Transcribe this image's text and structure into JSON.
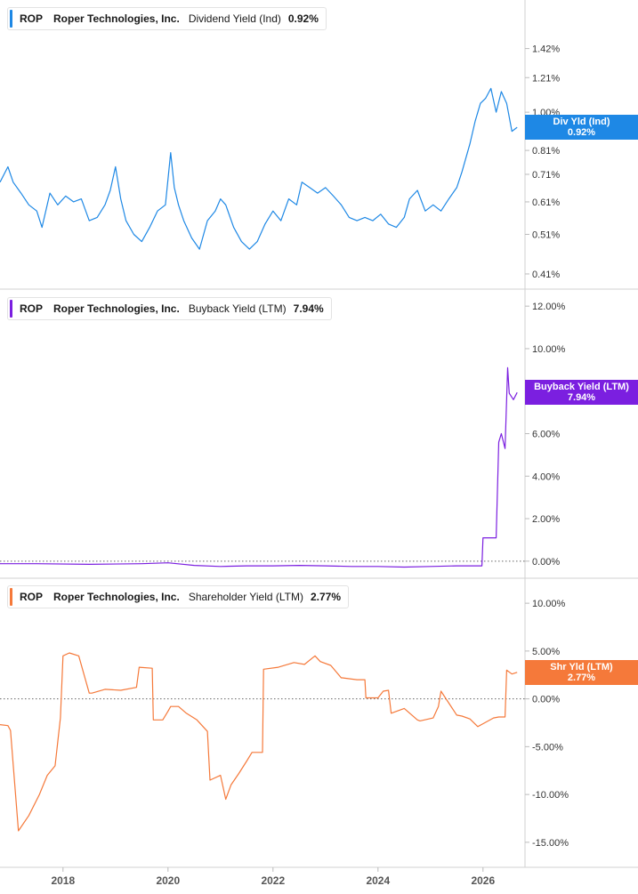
{
  "panels": [
    {
      "ticker": "ROP",
      "company": "Roper Technologies, Inc.",
      "metric": "Dividend Yield (Ind)",
      "value": "0.92%",
      "color": "#1e88e5",
      "tag": {
        "label": "Div Yld (Ind)",
        "value": "0.92%"
      }
    },
    {
      "ticker": "ROP",
      "company": "Roper Technologies, Inc.",
      "metric": "Buyback Yield (LTM)",
      "value": "7.94%",
      "color": "#7b1fe0",
      "tag": {
        "label": "Buyback Yield (LTM)",
        "value": "7.94%"
      }
    },
    {
      "ticker": "ROP",
      "company": "Roper Technologies, Inc.",
      "metric": "Shareholder Yield (LTM)",
      "value": "2.77%",
      "color": "#f5793a",
      "tag": {
        "label": "Shr Yld (LTM)",
        "value": "2.77%"
      }
    }
  ],
  "chart_data": [
    {
      "type": "line",
      "title": "ROP Roper Technologies, Inc. Dividend Yield (Ind) 0.92%",
      "scale": "log",
      "ylim": [
        0.4,
        1.75
      ],
      "yticks": [
        0.41,
        0.51,
        0.61,
        0.71,
        0.81,
        1.0,
        1.21,
        1.42
      ],
      "ytick_labels": [
        "0.41%",
        "0.51%",
        "0.61%",
        "0.71%",
        "0.81%",
        "1.00%",
        "1.21%",
        "1.42%"
      ],
      "grid": false,
      "series": [
        {
          "color": "#1e88e5",
          "x": [
            2016.8,
            2016.95,
            2017.05,
            2017.2,
            2017.35,
            2017.5,
            2017.6,
            2017.75,
            2017.9,
            2018.05,
            2018.2,
            2018.35,
            2018.5,
            2018.65,
            2018.8,
            2018.9,
            2019.0,
            2019.1,
            2019.2,
            2019.35,
            2019.5,
            2019.65,
            2019.8,
            2019.95,
            2020.05,
            2020.12,
            2020.2,
            2020.3,
            2020.45,
            2020.6,
            2020.75,
            2020.9,
            2021.0,
            2021.1,
            2021.25,
            2021.4,
            2021.55,
            2021.7,
            2021.85,
            2022.0,
            2022.15,
            2022.3,
            2022.45,
            2022.55,
            2022.7,
            2022.85,
            2023.0,
            2023.15,
            2023.3,
            2023.45,
            2023.6,
            2023.75,
            2023.9,
            2024.05,
            2024.2,
            2024.35,
            2024.5,
            2024.6,
            2024.75,
            2024.9,
            2025.05,
            2025.2,
            2025.35,
            2025.5,
            2025.6,
            2025.75,
            2025.85,
            2025.95,
            2026.05,
            2026.15,
            2026.25,
            2026.35,
            2026.45,
            2026.55,
            2026.65
          ],
          "values": [
            0.68,
            0.74,
            0.68,
            0.64,
            0.6,
            0.58,
            0.53,
            0.64,
            0.6,
            0.63,
            0.61,
            0.62,
            0.55,
            0.56,
            0.6,
            0.65,
            0.74,
            0.62,
            0.55,
            0.51,
            0.49,
            0.53,
            0.58,
            0.6,
            0.8,
            0.66,
            0.6,
            0.55,
            0.5,
            0.47,
            0.55,
            0.58,
            0.62,
            0.6,
            0.53,
            0.49,
            0.47,
            0.49,
            0.54,
            0.58,
            0.55,
            0.62,
            0.6,
            0.68,
            0.66,
            0.64,
            0.66,
            0.63,
            0.6,
            0.56,
            0.55,
            0.56,
            0.55,
            0.57,
            0.54,
            0.53,
            0.56,
            0.62,
            0.65,
            0.58,
            0.6,
            0.58,
            0.62,
            0.66,
            0.72,
            0.84,
            0.95,
            1.05,
            1.08,
            1.14,
            1.0,
            1.12,
            1.05,
            0.9,
            0.92
          ]
        }
      ]
    },
    {
      "type": "line",
      "title": "ROP Roper Technologies, Inc. Buyback Yield (LTM) 7.94%",
      "ylim": [
        -0.3,
        12.3
      ],
      "yticks": [
        0,
        2,
        4,
        6,
        8,
        10,
        12
      ],
      "ytick_labels": [
        "0.00%",
        "2.00%",
        "4.00%",
        "6.00%",
        "",
        "10.00%",
        "12.00%"
      ],
      "zero_line": true,
      "grid": false,
      "series": [
        {
          "color": "#7b1fe0",
          "x": [
            2016.8,
            2017.5,
            2018.5,
            2019.5,
            2020.0,
            2020.5,
            2021.0,
            2021.5,
            2022.0,
            2022.5,
            2023.0,
            2023.5,
            2024.0,
            2024.5,
            2025.0,
            2025.5,
            2025.98,
            2026.0,
            2026.15,
            2026.25,
            2026.3,
            2026.35,
            2026.42,
            2026.47,
            2026.5,
            2026.58,
            2026.65
          ],
          "values": [
            -0.12,
            -0.12,
            -0.15,
            -0.12,
            -0.08,
            -0.2,
            -0.25,
            -0.22,
            -0.22,
            -0.2,
            -0.22,
            -0.25,
            -0.25,
            -0.28,
            -0.25,
            -0.22,
            -0.22,
            1.1,
            1.1,
            1.1,
            5.6,
            6.0,
            5.3,
            9.1,
            7.9,
            7.6,
            7.94
          ]
        }
      ]
    },
    {
      "type": "line",
      "title": "ROP Roper Technologies, Inc. Shareholder Yield (LTM) 2.77%",
      "ylim": [
        -16.5,
        11.5
      ],
      "yticks": [
        -15,
        -10,
        -5,
        0,
        5,
        10
      ],
      "ytick_labels": [
        "-15.00%",
        "-10.00%",
        "-5.00%",
        "0.00%",
        "5.00%",
        "10.00%"
      ],
      "zero_line": true,
      "grid": false,
      "x_ticks": [
        2018,
        2020,
        2022,
        2024,
        2026
      ],
      "x_tick_labels": [
        "2018",
        "2020",
        "2022",
        "2024",
        "2026"
      ],
      "series": [
        {
          "color": "#f5793a",
          "x": [
            2016.8,
            2016.95,
            2017.0,
            2017.15,
            2017.35,
            2017.55,
            2017.7,
            2017.85,
            2017.95,
            2018.0,
            2018.12,
            2018.3,
            2018.5,
            2018.55,
            2018.8,
            2019.1,
            2019.4,
            2019.45,
            2019.7,
            2019.72,
            2019.9,
            2020.0,
            2020.05,
            2020.2,
            2020.35,
            2020.55,
            2020.75,
            2020.8,
            2021.0,
            2021.1,
            2021.2,
            2021.35,
            2021.5,
            2021.6,
            2021.8,
            2021.82,
            2022.1,
            2022.4,
            2022.6,
            2022.8,
            2022.9,
            2023.1,
            2023.3,
            2023.32,
            2023.6,
            2023.75,
            2023.77,
            2024.0,
            2024.1,
            2024.2,
            2024.25,
            2024.5,
            2024.75,
            2024.8,
            2025.05,
            2025.15,
            2025.2,
            2025.5,
            2025.6,
            2025.75,
            2025.9,
            2026.0,
            2026.2,
            2026.3,
            2026.42,
            2026.45,
            2026.55,
            2026.65
          ],
          "values": [
            -2.7,
            -2.8,
            -3.3,
            -13.8,
            -12.2,
            -10.0,
            -8.0,
            -7.0,
            -2.0,
            4.5,
            4.8,
            4.5,
            0.6,
            0.6,
            1.0,
            0.9,
            1.2,
            3.3,
            3.2,
            -2.2,
            -2.2,
            -1.3,
            -0.8,
            -0.8,
            -1.5,
            -2.2,
            -3.4,
            -8.5,
            -8.0,
            -10.5,
            -9.0,
            -7.8,
            -6.5,
            -5.6,
            -5.6,
            3.1,
            3.3,
            3.8,
            3.6,
            4.5,
            3.9,
            3.5,
            2.2,
            2.2,
            2.0,
            2.0,
            0.1,
            0.1,
            0.8,
            0.9,
            -1.5,
            -1.0,
            -2.2,
            -2.3,
            -2.0,
            -0.8,
            0.8,
            -1.7,
            -1.8,
            -2.1,
            -2.9,
            -2.6,
            -2.0,
            -1.9,
            -1.9,
            3.0,
            2.6,
            2.77
          ]
        }
      ]
    }
  ]
}
